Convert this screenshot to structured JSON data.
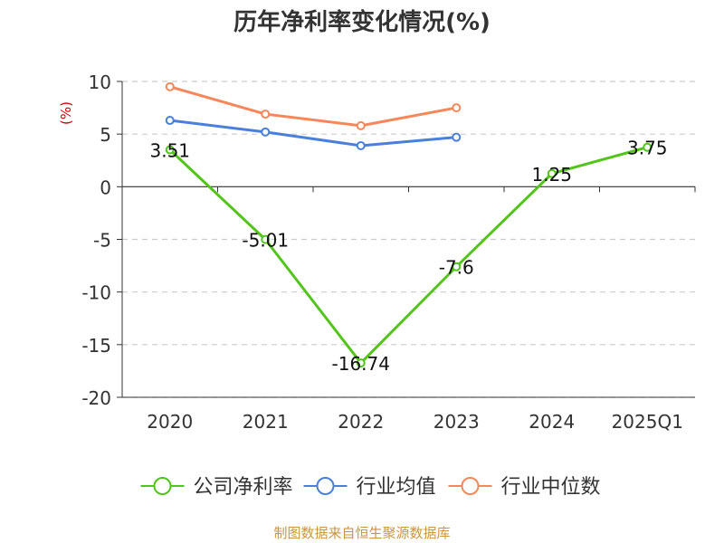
{
  "title": "历年净利率变化情况(%)",
  "source": "制图数据来自恒生聚源数据库",
  "colors": {
    "company": "#52c41a",
    "industry_avg": "#4a7fdb",
    "industry_median": "#f5875a",
    "ylabel": "#cc0000",
    "grid": "#cccccc",
    "axis": "#333333"
  },
  "chart_data": {
    "type": "line",
    "ylabel": "(%)",
    "ylim": [
      -20,
      10
    ],
    "yticks": [
      10,
      5,
      0,
      -5,
      -10,
      -15,
      -20
    ],
    "categories": [
      "2020",
      "2021",
      "2022",
      "2023",
      "2024",
      "2025Q1"
    ],
    "legend_position": "bottom",
    "grid": true,
    "series": [
      {
        "name": "公司净利率",
        "color": "#52c41a",
        "values": [
          3.51,
          -5.01,
          -16.74,
          -7.6,
          1.25,
          3.75
        ],
        "labels": [
          "3.51",
          "-5.01",
          "-16.74",
          "-7.6",
          "1.25",
          "3.75"
        ]
      },
      {
        "name": "行业均值",
        "color": "#4a7fdb",
        "values": [
          6.3,
          5.2,
          3.9,
          4.7,
          null,
          null
        ]
      },
      {
        "name": "行业中位数",
        "color": "#f5875a",
        "values": [
          9.5,
          6.9,
          5.8,
          7.5,
          null,
          null
        ]
      }
    ]
  }
}
